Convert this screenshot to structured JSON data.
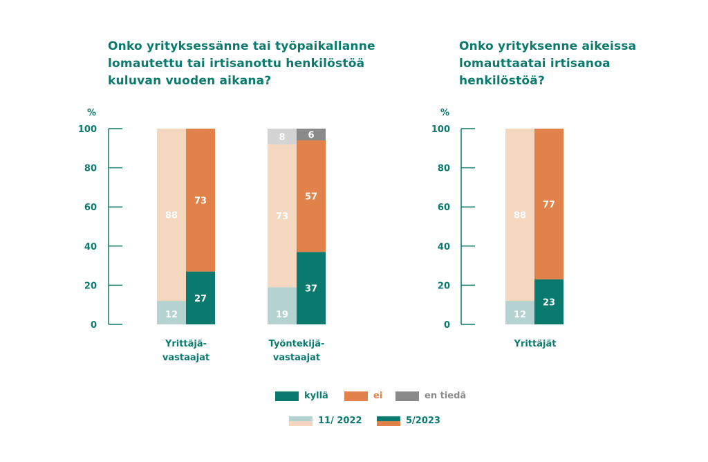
{
  "colors": {
    "teal": "#0b7a6e",
    "orange": "#e0824a",
    "gray": "#8a8a8a",
    "teal_light": "#b4d3d0",
    "orange_light": "#f5d7c0",
    "gray_light": "#d3d3d3",
    "axis": "#0b7a6e"
  },
  "legend": {
    "yes": "kyllä",
    "no": "ei",
    "dont_know": "en tiedä",
    "period1": "11/ 2022",
    "period2": "5/2023"
  },
  "chart_data": [
    {
      "type": "bar",
      "stacked": true,
      "title": "Onko yrityksessänne tai työpaikallanne lomautettu tai irtisanottu henkilöstöä kuluvan vuoden aikana?",
      "ylabel": "%",
      "ylim": [
        0,
        100
      ],
      "yticks": [
        "0",
        "20",
        "40",
        "60",
        "80",
        "100"
      ],
      "categories": [
        "Yrittäjä-vastaajat",
        "Työntekijä-vastaajat"
      ],
      "periods": [
        "11/ 2022",
        "5/2023"
      ],
      "series": [
        {
          "name": "kyllä",
          "values": {
            "11/ 2022": [
              12,
              19
            ],
            "5/2023": [
              27,
              37
            ]
          }
        },
        {
          "name": "ei",
          "values": {
            "11/ 2022": [
              88,
              73
            ],
            "5/2023": [
              73,
              57
            ]
          }
        },
        {
          "name": "en tiedä",
          "values": {
            "11/ 2022": [
              null,
              8
            ],
            "5/2023": [
              null,
              6
            ]
          }
        }
      ]
    },
    {
      "type": "bar",
      "stacked": true,
      "title": "Onko yrityksenne aikeissa lomauttaatai irtisanoa henkilöstöä?",
      "ylabel": "%",
      "ylim": [
        0,
        100
      ],
      "yticks": [
        "0",
        "20",
        "40",
        "60",
        "80",
        "100"
      ],
      "categories": [
        "Yrittäjät"
      ],
      "periods": [
        "11/ 2022",
        "5/2023"
      ],
      "series": [
        {
          "name": "kyllä",
          "values": {
            "11/ 2022": [
              12
            ],
            "5/2023": [
              23
            ]
          }
        },
        {
          "name": "ei",
          "values": {
            "11/ 2022": [
              88
            ],
            "5/2023": [
              77
            ]
          }
        }
      ]
    }
  ]
}
